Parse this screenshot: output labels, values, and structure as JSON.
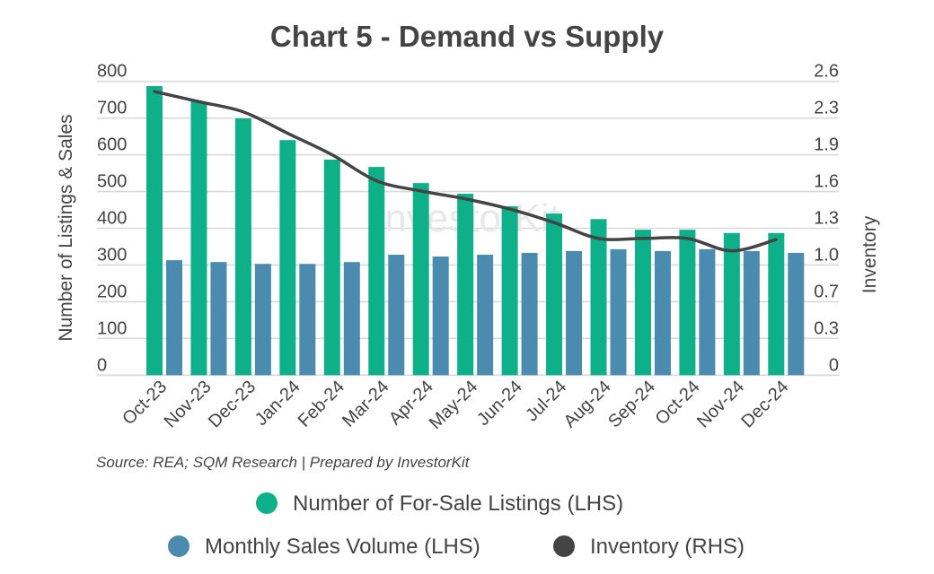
{
  "chart_data": {
    "type": "bar",
    "title": "Chart 5 - Demand vs Supply",
    "ylabel": "Number of Listings & Sales",
    "y2label": "Inventory",
    "ylim": [
      0,
      800
    ],
    "y2lim": [
      0,
      2.6
    ],
    "yticks": [
      "0",
      "100",
      "200",
      "300",
      "400",
      "500",
      "600",
      "700",
      "800"
    ],
    "y2ticks": [
      "0",
      "0.3",
      "0.7",
      "1.0",
      "1.3",
      "1.6",
      "1.9",
      "2.3",
      "2.6"
    ],
    "grid": true,
    "legend_position": "bottom",
    "categories": [
      "Oct-23",
      "Nov-23",
      "Dec-23",
      "Jan-24",
      "Feb-24",
      "Mar-24",
      "Apr-24",
      "May-24",
      "Jun-24",
      "Jul-24",
      "Aug-24",
      "Sep-24",
      "Oct-24",
      "Nov-24",
      "Dec-24"
    ],
    "series": [
      {
        "name": "Number of For-Sale Listings (LHS)",
        "type": "bar",
        "axis": "left",
        "color": "#0db088",
        "values": [
          787,
          745,
          699,
          640,
          587,
          567,
          523,
          494,
          460,
          440,
          425,
          396,
          396,
          387,
          387
        ]
      },
      {
        "name": "Monthly Sales Volume (LHS)",
        "type": "bar",
        "axis": "left",
        "color": "#4a8baf",
        "values": [
          313,
          308,
          303,
          303,
          308,
          328,
          323,
          328,
          333,
          338,
          343,
          338,
          343,
          338,
          333
        ]
      },
      {
        "name": "Inventory (RHS)",
        "type": "line",
        "axis": "right",
        "color": "#444444",
        "values": [
          2.51,
          2.42,
          2.33,
          2.14,
          1.95,
          1.72,
          1.63,
          1.56,
          1.47,
          1.35,
          1.21,
          1.21,
          1.21,
          1.1,
          1.2
        ]
      }
    ],
    "source": "Source: REA; SQM Research | Prepared by InvestorKit",
    "watermark": "InvestorKit"
  }
}
